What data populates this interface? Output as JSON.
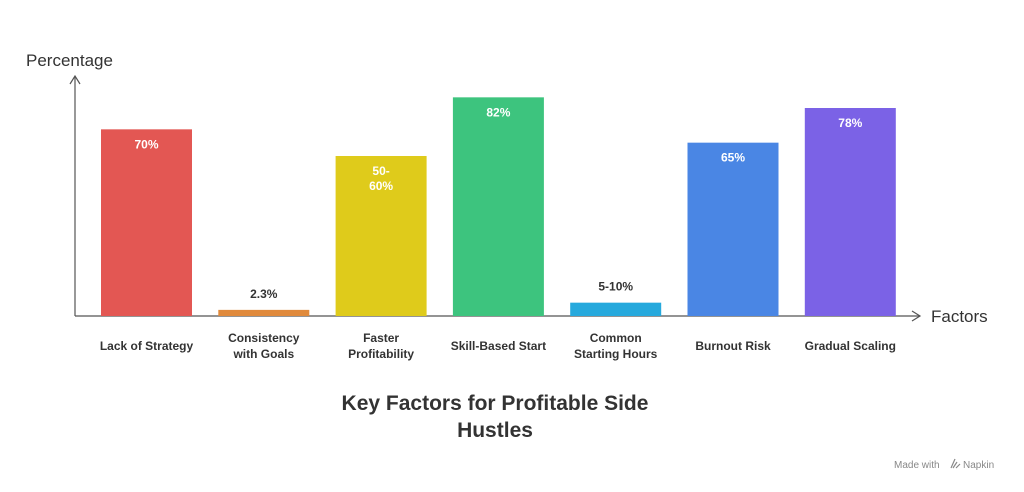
{
  "chart_data": {
    "type": "bar",
    "title": "Key Factors for Profitable Side Hustles",
    "title_lines": [
      "Key Factors for Profitable Side",
      "Hustles"
    ],
    "ylabel": "Percentage",
    "xlabel": "Factors",
    "ylim": [
      0,
      90
    ],
    "grid": false,
    "legend": "none",
    "categories": [
      [
        "Lack of Strategy"
      ],
      [
        "Consistency",
        "with Goals"
      ],
      [
        "Faster",
        "Profitability"
      ],
      [
        "Skill-Based Start"
      ],
      [
        "Common",
        "Starting Hours"
      ],
      [
        "Burnout Risk"
      ],
      [
        "Gradual Scaling"
      ]
    ],
    "values": [
      70,
      2.3,
      60,
      82,
      5,
      65,
      78
    ],
    "value_labels": [
      [
        "70%"
      ],
      [
        "2.3%"
      ],
      [
        "50-",
        "60%"
      ],
      [
        "82%"
      ],
      [
        "5-10%"
      ],
      [
        "65%"
      ],
      [
        "78%"
      ]
    ],
    "colors": [
      "#E35753",
      "#E08A3C",
      "#DFCB1B",
      "#3DC47E",
      "#26A9DD",
      "#4A86E4",
      "#7B62E6"
    ]
  },
  "footer": {
    "made_with": "Made with",
    "brand": "Napkin"
  }
}
